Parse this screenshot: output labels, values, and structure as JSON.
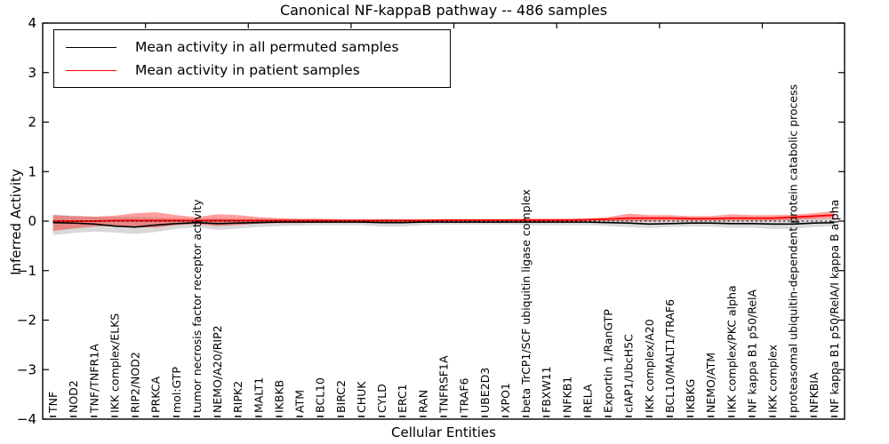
{
  "chart_data": {
    "type": "line",
    "title": "Canonical NF-kappaB pathway -- 486 samples",
    "xlabel": "Cellular Entities",
    "ylabel": "Inferred Activity",
    "ylim": [
      -4,
      4
    ],
    "yticks": [
      -4,
      -3,
      -2,
      -1,
      0,
      1,
      2,
      3,
      4
    ],
    "ytick_labels": [
      "−4",
      "−3",
      "−2",
      "−1",
      "0",
      "1",
      "2",
      "3",
      "4"
    ],
    "x_major_ticks": [
      5,
      10,
      15,
      20,
      25,
      30,
      35
    ],
    "grid": false,
    "legend_position": "upper left",
    "categories": [
      "TNF",
      "NOD2",
      "TNF/TNFR1A",
      "IKK complex/ELKS",
      "RIP2/NOD2",
      "PRKCA",
      "mol:GTP",
      "tumor necrosis factor receptor activity",
      "NEMO/A20/RIP2",
      "RIPK2",
      "MALT1",
      "IKBKB",
      "ATM",
      "BCL10",
      "BIRC2",
      "CHUK",
      "CYLD",
      "ERC1",
      "RAN",
      "TNFRSF1A",
      "TRAF6",
      "UBE2D3",
      "XPO1",
      "beta TrCP1/SCF ubiquitin ligase complex",
      "FBXW11",
      "NFKB1",
      "RELA",
      "Exportin 1/RanGTP",
      "cIAP1/UbcH5C",
      "IKK complex/A20",
      "BCL10/MALT1/TRAF6",
      "IKBKG",
      "NEMO/ATM",
      "IKK complex/PKC alpha",
      "NF kappa B1 p50/RelA",
      "IKK complex",
      "proteasomal ubiquitin-dependent protein catabolic process",
      "NFKBIA",
      "NF kappa B1 p50/RelA/I kappa B alpha"
    ],
    "series": [
      {
        "name": "Mean activity in all permuted samples",
        "color": "#000000",
        "values": [
          -0.03,
          -0.04,
          -0.06,
          -0.1,
          -0.12,
          -0.08,
          -0.05,
          -0.03,
          -0.05,
          -0.04,
          -0.03,
          -0.02,
          -0.02,
          -0.02,
          -0.02,
          -0.02,
          -0.03,
          -0.03,
          -0.02,
          -0.02,
          -0.02,
          -0.02,
          -0.02,
          -0.02,
          -0.02,
          -0.02,
          -0.02,
          -0.03,
          -0.04,
          -0.06,
          -0.05,
          -0.04,
          -0.04,
          -0.05,
          -0.05,
          -0.06,
          -0.06,
          -0.04,
          -0.03
        ],
        "band": {
          "color": "rgba(0,0,0,0.15)",
          "upper": [
            0.13,
            0.11,
            0.09,
            0.08,
            0.08,
            0.07,
            0.06,
            0.05,
            0.06,
            0.05,
            0.05,
            0.04,
            0.04,
            0.04,
            0.03,
            0.03,
            0.04,
            0.04,
            0.03,
            0.03,
            0.03,
            0.03,
            0.03,
            0.03,
            0.03,
            0.03,
            0.03,
            0.04,
            0.05,
            0.04,
            0.04,
            0.04,
            0.04,
            0.05,
            0.05,
            0.06,
            0.08,
            0.06,
            0.05
          ],
          "lower": [
            -0.28,
            -0.24,
            -0.21,
            -0.23,
            -0.26,
            -0.22,
            -0.16,
            -0.12,
            -0.18,
            -0.15,
            -0.12,
            -0.1,
            -0.09,
            -0.08,
            -0.08,
            -0.08,
            -0.11,
            -0.11,
            -0.08,
            -0.07,
            -0.07,
            -0.07,
            -0.07,
            -0.08,
            -0.08,
            -0.08,
            -0.08,
            -0.1,
            -0.12,
            -0.14,
            -0.12,
            -0.11,
            -0.11,
            -0.14,
            -0.13,
            -0.16,
            -0.16,
            -0.12,
            -0.1
          ]
        }
      },
      {
        "name": "Mean activity in patient samples",
        "color": "#ff0000",
        "values": [
          0.0,
          0.0,
          0.0,
          0.01,
          0.01,
          0.01,
          0.01,
          0.01,
          0.01,
          0.01,
          0.01,
          0.01,
          0.01,
          0.01,
          0.01,
          0.01,
          0.01,
          0.01,
          0.01,
          0.02,
          0.02,
          0.02,
          0.02,
          0.02,
          0.02,
          0.02,
          0.03,
          0.04,
          0.06,
          0.06,
          0.06,
          0.05,
          0.05,
          0.06,
          0.06,
          0.06,
          0.08,
          0.1,
          0.12
        ],
        "band": {
          "color": "rgba(255,0,0,0.38)",
          "upper": [
            0.12,
            0.1,
            0.09,
            0.11,
            0.16,
            0.18,
            0.12,
            0.08,
            0.14,
            0.12,
            0.08,
            0.06,
            0.05,
            0.05,
            0.04,
            0.04,
            0.04,
            0.04,
            0.04,
            0.04,
            0.04,
            0.04,
            0.04,
            0.05,
            0.05,
            0.05,
            0.05,
            0.08,
            0.15,
            0.12,
            0.12,
            0.1,
            0.1,
            0.14,
            0.12,
            0.12,
            0.13,
            0.16,
            0.2
          ],
          "lower": [
            -0.2,
            -0.15,
            -0.11,
            -0.09,
            -0.12,
            -0.13,
            -0.08,
            -0.06,
            -0.1,
            -0.08,
            -0.05,
            -0.04,
            -0.04,
            -0.03,
            -0.03,
            -0.03,
            -0.03,
            -0.03,
            -0.02,
            -0.02,
            -0.02,
            -0.02,
            -0.02,
            -0.01,
            -0.01,
            -0.01,
            0.0,
            0.0,
            0.0,
            0.0,
            0.01,
            0.01,
            0.01,
            0.01,
            0.01,
            0.01,
            0.02,
            0.04,
            0.05
          ]
        }
      }
    ],
    "zero_line": {
      "y": 0,
      "style": "dotted",
      "color": "#000000"
    }
  }
}
